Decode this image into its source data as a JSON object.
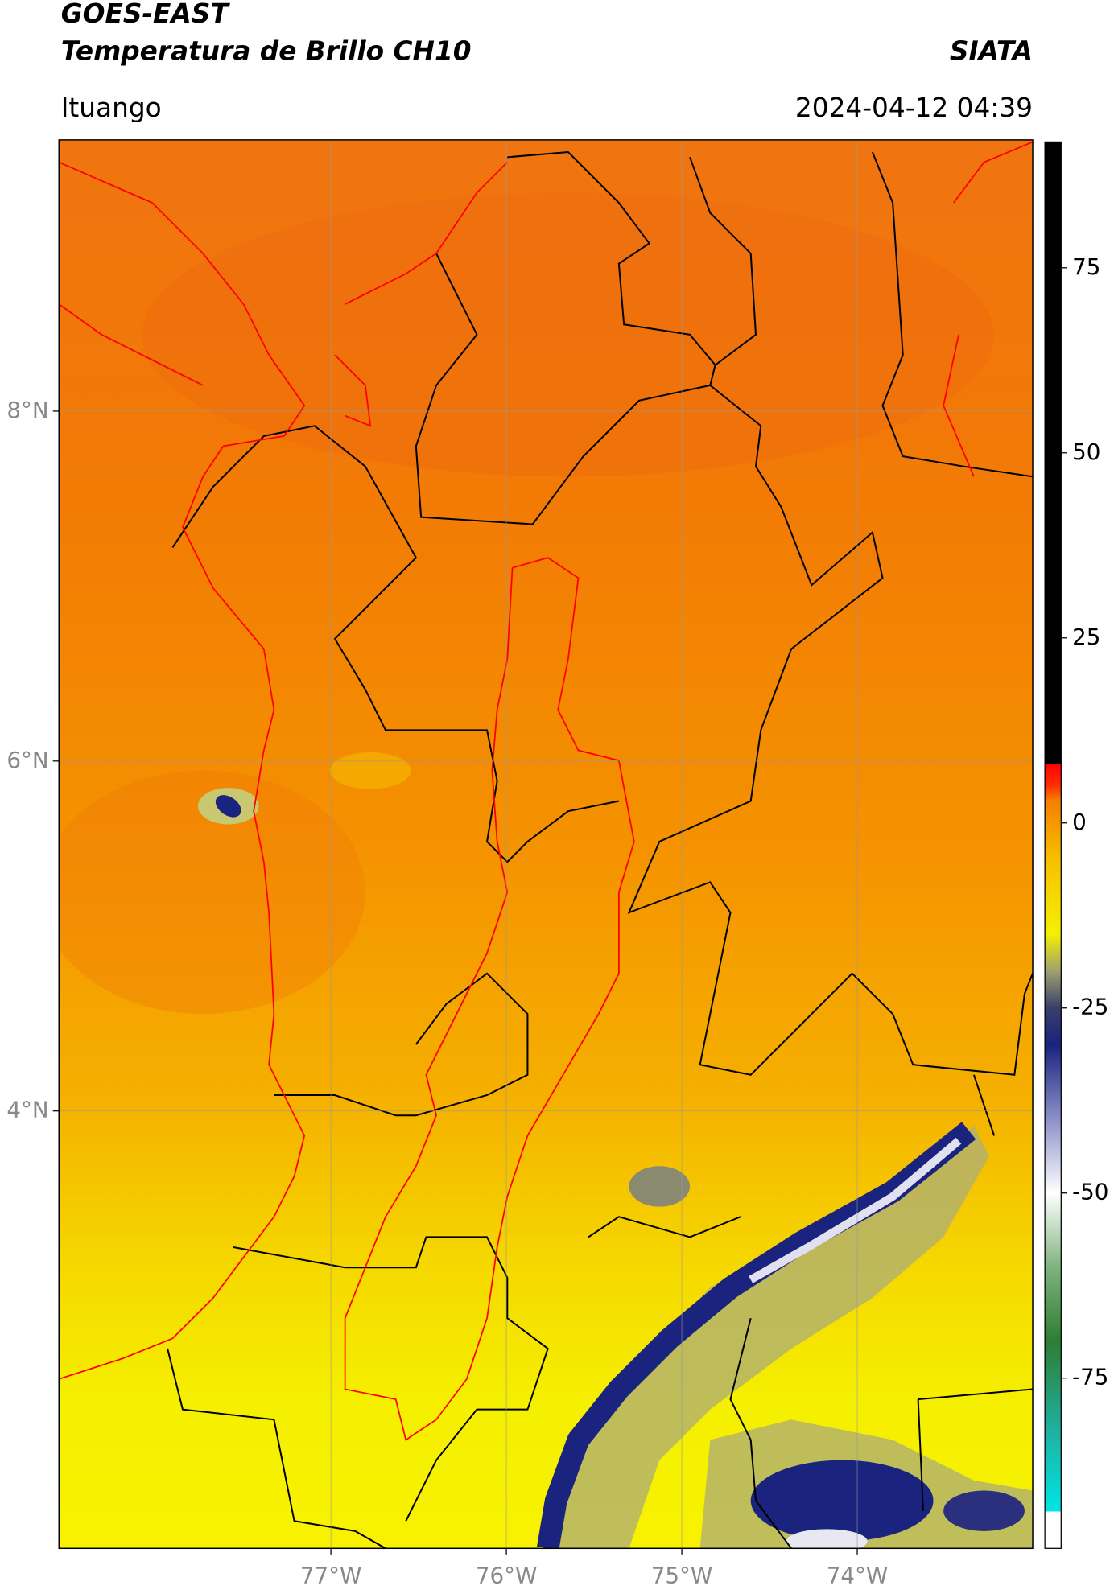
{
  "chart_data": {
    "type": "map",
    "title": "GOES-EAST",
    "subtitle": "Temperatura de Brillo CH10",
    "source": "SIATA",
    "location": "Ituango",
    "datetime": "2024-04-12 04:39",
    "xlim": [
      -78.55,
      -73.0
    ],
    "ylim": [
      1.5,
      9.55
    ],
    "xticks": [
      {
        "value": -77,
        "label": "77°W"
      },
      {
        "value": -76,
        "label": "76°W"
      },
      {
        "value": -75,
        "label": "75°W"
      },
      {
        "value": -74,
        "label": "74°W"
      }
    ],
    "yticks": [
      {
        "value": 4,
        "label": "4°N"
      },
      {
        "value": 6,
        "label": "6°N"
      },
      {
        "value": 8,
        "label": "8°N"
      }
    ],
    "grid": true,
    "colorbar": {
      "lim": [
        -98,
        92
      ],
      "ticks": [
        -75,
        -50,
        -25,
        0,
        25,
        50,
        75
      ],
      "stops": [
        {
          "value": -98,
          "color": "#ffffff"
        },
        {
          "value": -93,
          "color": "#ffffff"
        },
        {
          "value": -93,
          "color": "#00e5e5"
        },
        {
          "value": -82,
          "color": "#20b0a0"
        },
        {
          "value": -70,
          "color": "#2e7d32"
        },
        {
          "value": -60,
          "color": "#7fb37f"
        },
        {
          "value": -50,
          "color": "#ffffff"
        },
        {
          "value": -40,
          "color": "#8c90c8"
        },
        {
          "value": -30,
          "color": "#1a237e"
        },
        {
          "value": -25,
          "color": "#3a3f6a"
        },
        {
          "value": -20,
          "color": "#a0a070"
        },
        {
          "value": -15,
          "color": "#f5f000"
        },
        {
          "value": -5,
          "color": "#f7c000"
        },
        {
          "value": 3,
          "color": "#f58000"
        },
        {
          "value": 5,
          "color": "#ff3000"
        },
        {
          "value": 8,
          "color": "#ff0000"
        },
        {
          "value": 8,
          "color": "#000000"
        },
        {
          "value": 92,
          "color": "#000000"
        }
      ]
    }
  }
}
